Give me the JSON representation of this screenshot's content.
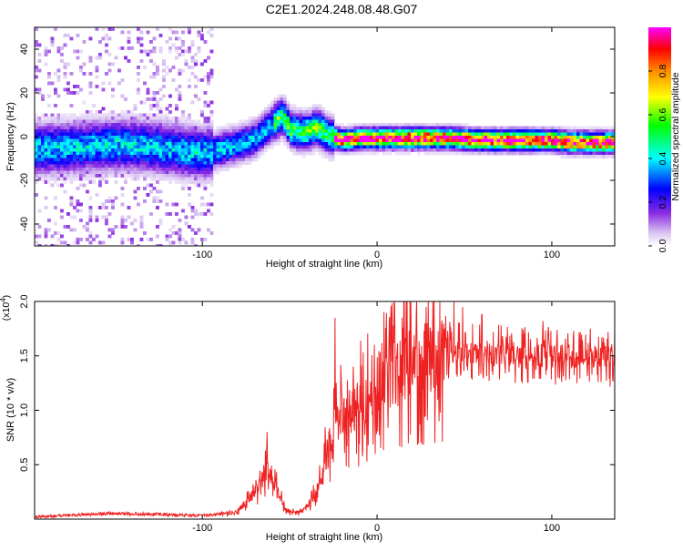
{
  "title": "C2E1.2024.248.08.48.G07",
  "colors": {
    "snr_line": "#ee2222",
    "colormap": [
      "#ffffff",
      "#d9c4f2",
      "#8a2be2",
      "#0000ff",
      "#00ffff",
      "#00ff00",
      "#ffff00",
      "#ff8c00",
      "#ff0000",
      "#ff00ff"
    ]
  },
  "chart_data": [
    {
      "type": "heatmap",
      "name": "spectrogram",
      "xlabel": "Height of straight line (km)",
      "ylabel": "Frequency (Hz)",
      "xlim": [
        -196,
        136
      ],
      "ylim": [
        -50,
        50
      ],
      "xticks": [
        -100,
        0,
        100
      ],
      "yticks": [
        -40,
        -20,
        0,
        20,
        40
      ],
      "grid": false,
      "ridge": {
        "x": [
          -196,
          -170,
          -150,
          -130,
          -110,
          -100,
          -90,
          -80,
          -70,
          -60,
          -55,
          -50,
          -45,
          -40,
          -35,
          -30,
          -25,
          -20,
          -10,
          0,
          20,
          40,
          60,
          80,
          100,
          110,
          120,
          136
        ],
        "y": [
          -5,
          -4,
          -3,
          -4,
          -6,
          -7,
          -5,
          -3,
          0,
          7,
          10,
          4,
          3,
          3,
          5,
          2,
          0,
          -1,
          0,
          0,
          0,
          0,
          -1,
          -1,
          -1,
          -2,
          -2,
          -2
        ]
      },
      "colorbar": {
        "label": "Normalized spectral amplitude",
        "range": [
          0,
          1
        ],
        "ticks": [
          "0.0",
          "0.2",
          "0.4",
          "0.6",
          "0.8"
        ],
        "tick_values": [
          0,
          0.2,
          0.4,
          0.6,
          0.8
        ]
      }
    },
    {
      "type": "line",
      "name": "snr",
      "xlabel": "Height of straight line (km)",
      "ylabel": "SNR (10 * v/v)",
      "scale_label": "(x10^4)",
      "xlim": [
        -196,
        136
      ],
      "ylim": [
        0,
        20000
      ],
      "xticks": [
        -100,
        0,
        100
      ],
      "yticks": [
        5000,
        10000,
        15000,
        20000
      ],
      "ytick_labels": [
        "0.5",
        "1.0",
        "1.5",
        "2.0"
      ],
      "grid": false,
      "envelope": {
        "x": [
          -196,
          -150,
          -100,
          -80,
          -70,
          -63,
          -58,
          -52,
          -45,
          -38,
          -32,
          -28,
          -25,
          -20,
          -10,
          0,
          10,
          20,
          30,
          40,
          50,
          60,
          80,
          100,
          120,
          136
        ],
        "y": [
          200,
          500,
          300,
          600,
          2500,
          4500,
          3000,
          700,
          600,
          1500,
          3500,
          7000,
          8500,
          9500,
          10500,
          12000,
          13500,
          14500,
          15200,
          15500,
          15500,
          15200,
          15200,
          15000,
          15000,
          14800
        ]
      },
      "spikes": [
        {
          "x": -63,
          "y": 8000
        },
        {
          "x": -24,
          "y": 18500
        },
        {
          "x": 28,
          "y": 19500
        },
        {
          "x": 44,
          "y": 20000
        },
        {
          "x": 49,
          "y": 19500
        },
        {
          "x": 60,
          "y": 18800
        },
        {
          "x": 95,
          "y": 18200
        }
      ]
    }
  ]
}
